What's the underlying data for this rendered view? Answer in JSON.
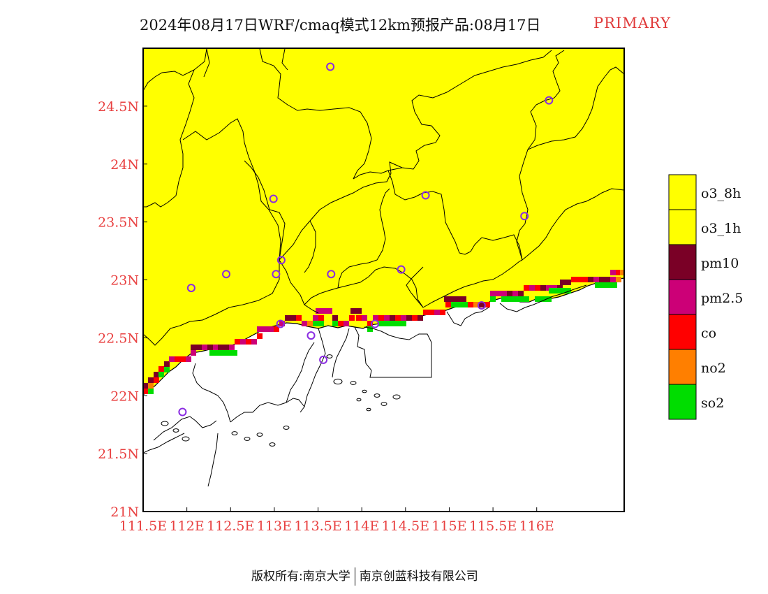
{
  "title": {
    "main": "2024年08月17日WRF/cmaq模式12km预报产品:08月17日",
    "tag": "PRIMARY"
  },
  "footer": {
    "left": "版权所有:南京大学",
    "right": "南京创蓝科技有限公司"
  },
  "map": {
    "lon_range": [
      111.5,
      117.0
    ],
    "lat_range": [
      21.0,
      25.0
    ],
    "x_ticks": [
      "111.5E",
      "112E",
      "112.5E",
      "113E",
      "113.5E",
      "114E",
      "114.5E",
      "115E",
      "115.5E",
      "116E"
    ],
    "y_ticks": [
      "21N",
      "21.5N",
      "22N",
      "22.5N",
      "23N",
      "23.5N",
      "24N",
      "24.5N"
    ],
    "land_color": "#ffff00",
    "sea_color": "#ffffff",
    "tick_color": "#e84040",
    "station_color": "#8a2be2",
    "stations_lonlat": [
      [
        113.64,
        24.84
      ],
      [
        116.14,
        24.55
      ],
      [
        112.99,
        23.7
      ],
      [
        114.73,
        23.73
      ],
      [
        115.86,
        23.55
      ],
      [
        113.08,
        23.17
      ],
      [
        112.45,
        23.05
      ],
      [
        113.02,
        23.05
      ],
      [
        113.65,
        23.05
      ],
      [
        114.45,
        23.09
      ],
      [
        112.05,
        22.93
      ],
      [
        113.07,
        22.62
      ],
      [
        114.15,
        22.62
      ],
      [
        113.42,
        22.52
      ],
      [
        113.56,
        22.31
      ],
      [
        115.37,
        22.78
      ],
      [
        111.95,
        21.86
      ]
    ]
  },
  "legend": {
    "items": [
      {
        "label": "o3_8h",
        "color": "#ffff00"
      },
      {
        "label": "o3_1h",
        "color": "#ffff00"
      },
      {
        "label": "pm10",
        "color": "#7a0026"
      },
      {
        "label": "pm2.5",
        "color": "#cc0077"
      },
      {
        "label": "co",
        "color": "#ff0000"
      },
      {
        "label": "no2",
        "color": "#ff7f00"
      },
      {
        "label": "so2",
        "color": "#00dd00"
      }
    ]
  }
}
